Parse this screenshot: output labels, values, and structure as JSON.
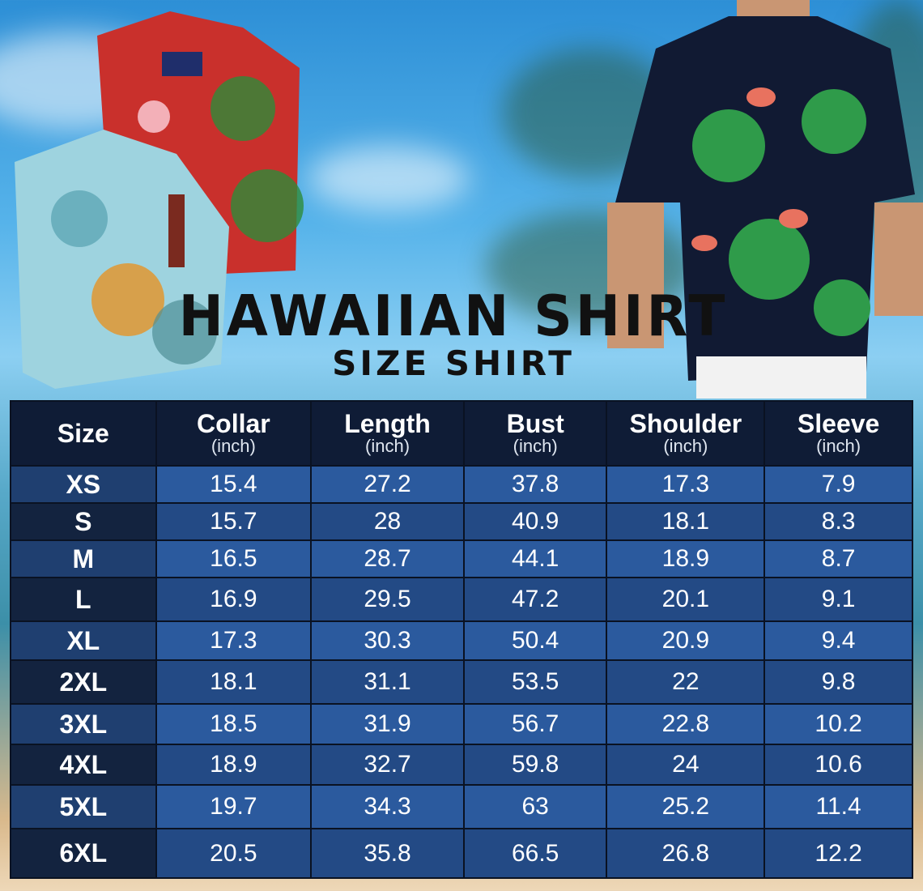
{
  "title": "HAWAIIAN SHIRT",
  "subtitle": "SIZE SHIRT",
  "table": {
    "unit": "(inch)",
    "headers": [
      "Size",
      "Collar",
      "Length",
      "Bust",
      "Shoulder",
      "Sleeve"
    ],
    "rows": [
      [
        "XS",
        "15.4",
        "27.2",
        "37.8",
        "17.3",
        "7.9"
      ],
      [
        "S",
        "15.7",
        "28",
        "40.9",
        "18.1",
        "8.3"
      ],
      [
        "M",
        "16.5",
        "28.7",
        "44.1",
        "18.9",
        "8.7"
      ],
      [
        "L",
        "16.9",
        "29.5",
        "47.2",
        "20.1",
        "9.1"
      ],
      [
        "XL",
        "17.3",
        "30.3",
        "50.4",
        "20.9",
        "9.4"
      ],
      [
        "2XL",
        "18.1",
        "31.1",
        "53.5",
        "22",
        "9.8"
      ],
      [
        "3XL",
        "18.5",
        "31.9",
        "56.7",
        "22.8",
        "10.2"
      ],
      [
        "4XL",
        "18.9",
        "32.7",
        "59.8",
        "24",
        "10.6"
      ],
      [
        "5XL",
        "19.7",
        "34.3",
        "63",
        "25.2",
        "11.4"
      ],
      [
        "6XL",
        "20.5",
        "35.8",
        "66.5",
        "26.8",
        "12.2"
      ]
    ]
  },
  "colors": {
    "header": "#0f1c36",
    "row_light": "#2b5a9e",
    "row_dark": "#234a85"
  }
}
